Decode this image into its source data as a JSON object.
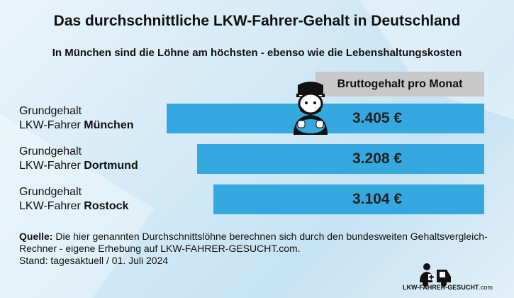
{
  "title": "Das durchschnittliche LKW-Fahrer-Gehalt in Deutschland",
  "subtitle": "In München sind die Löhne am höchsten - ebenso wie die Lebenshaltungskosten",
  "chart_data": {
    "type": "bar",
    "orientation": "horizontal",
    "title": "Das durchschnittliche LKW-Fahrer-Gehalt in Deutschland",
    "header": "Bruttogehalt pro Monat",
    "categories": [
      {
        "line1": "Grundgehalt",
        "prefix": "LKW-Fahrer ",
        "city": "München"
      },
      {
        "line1": "Grundgehalt",
        "prefix": "LKW-Fahrer ",
        "city": "Dortmund"
      },
      {
        "line1": "Grundgehalt",
        "prefix": "LKW-Fahrer ",
        "city": "Rostock"
      }
    ],
    "values": [
      3405,
      3208,
      3104
    ],
    "value_labels": [
      "3.405 €",
      "3.208 €",
      "3.104 €"
    ],
    "bar_color": "#35a8df"
  },
  "source": {
    "label": "Quelle:",
    "text": " Die hier genannten Durchschnittslöhne berechnen sich durch den bundesweiten Gehaltsvergleich-Rechner - eigene Erhebung auf LKW-FAHRER-GESUCHT.com.",
    "stand": "Stand: tagesaktuell / 01. Juli 2024"
  },
  "logo": {
    "text": "LKW-FAHRER-GESUCHT",
    ".com": ".com"
  }
}
